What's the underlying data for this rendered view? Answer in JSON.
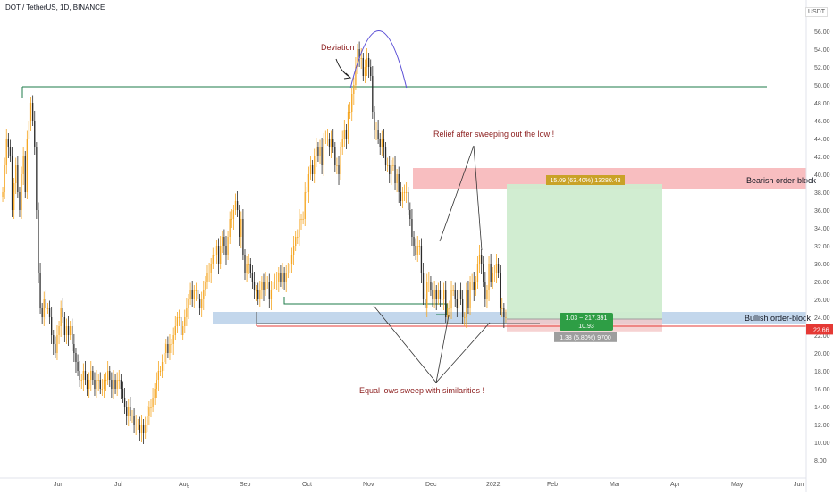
{
  "header": {
    "symbol_line": "DOT / TetherUS, 1D, BINANCE"
  },
  "axis": {
    "currency": "USDT"
  },
  "colors": {
    "up": "#f5a623",
    "down": "#2b2b2b",
    "bearish_zone": "#f7b7b9",
    "bullish_zone": "#bcd3ea",
    "profit_zone": "#cfeccf",
    "green_line": "#1e7b4a",
    "red_line": "#e53935",
    "annotation": "#8b1c1c",
    "curve": "#5b4fd6",
    "price_tag": "#e53935"
  },
  "annotations": {
    "deviation": "Deviation",
    "relief": "Relief after sweeping out the low !",
    "equal_lows": "Equal lows sweep with similarities !",
    "bearish_ob": "Bearish order-block",
    "bullish_ob": "Bullish order-block"
  },
  "position": {
    "target_label": "15.09 (63.40%) 13280.43",
    "ratio_label": "1.03 ~ 217.391",
    "ratio_sub": "10.93",
    "stop_label": "1.38 (5.80%) 9700"
  },
  "price_tag": "22.66",
  "chart_data": {
    "type": "candlestick",
    "title": "DOT / TetherUS, 1D, BINANCE",
    "xlabel": "",
    "ylabel": "USDT",
    "x_ticks": [
      "Jun",
      "Jul",
      "Aug",
      "Sep",
      "Oct",
      "Nov",
      "Dec",
      "2022",
      "Feb",
      "Mar",
      "Apr",
      "May",
      "Jun"
    ],
    "y_ticks": [
      "56.00",
      "54.00",
      "52.00",
      "50.00",
      "48.00",
      "46.00",
      "44.00",
      "42.00",
      "40.00",
      "38.00",
      "36.00",
      "34.00",
      "32.00",
      "30.00",
      "28.00",
      "26.00",
      "24.00",
      "22.00",
      "20.00",
      "18.00",
      "16.00",
      "14.00",
      "12.00",
      "10.00",
      "8.00"
    ],
    "ylim": [
      7,
      57.5
    ],
    "last_price": 22.66,
    "levels": [
      {
        "name": "green-resistance",
        "value": 49.8
      },
      {
        "name": "red-support",
        "value": 23.0
      }
    ],
    "zones": [
      {
        "name": "Bearish order-block",
        "low": 38.3,
        "high": 40.7
      },
      {
        "name": "Bullish order-block",
        "low": 23.2,
        "high": 24.6
      }
    ],
    "trade": {
      "entry": 23.8,
      "target": 38.9,
      "stop": 22.42
    },
    "closes": [
      38,
      41,
      44,
      43,
      42,
      36,
      39,
      41,
      38,
      36,
      40,
      42,
      38,
      44,
      46,
      48,
      46,
      43,
      36,
      29,
      25,
      24,
      26,
      25,
      25,
      24,
      22,
      21,
      20,
      22,
      23,
      25,
      24,
      22,
      23,
      22,
      23,
      21,
      20,
      19,
      18,
      17,
      17,
      18,
      17,
      16,
      17,
      18,
      17,
      16,
      17,
      17,
      16,
      16,
      17,
      17,
      18,
      17,
      16,
      17,
      16,
      17,
      17,
      16,
      15,
      14,
      13,
      14,
      13,
      13,
      12,
      12,
      12,
      11,
      12,
      11,
      12,
      13,
      14,
      14,
      15,
      16,
      17,
      18,
      18,
      19,
      20,
      21,
      20,
      21,
      21,
      22,
      23,
      24,
      24,
      22,
      23,
      24,
      25,
      26,
      27,
      26,
      27,
      27,
      26,
      25,
      26,
      27,
      28,
      29,
      29,
      30,
      31,
      31,
      32,
      30,
      32,
      33,
      32,
      31,
      33,
      35,
      35,
      36,
      37,
      36,
      33,
      35,
      31,
      29,
      30,
      30,
      29,
      28,
      27,
      27,
      26,
      27,
      28,
      27,
      28,
      28,
      26,
      27,
      28,
      28,
      28,
      29,
      28,
      29,
      28,
      29,
      29,
      30,
      31,
      32,
      33,
      33,
      35,
      35,
      35,
      38,
      38,
      40,
      41,
      40,
      42,
      43,
      42,
      43,
      41,
      44,
      44,
      44,
      43,
      44,
      43,
      41,
      41,
      40,
      43,
      44,
      45,
      44,
      47,
      47,
      49,
      50,
      52,
      54,
      53,
      53,
      51,
      52,
      53,
      52,
      51,
      47,
      45,
      45,
      44,
      43,
      44,
      43,
      41,
      41,
      40,
      41,
      41,
      39,
      40,
      38,
      37,
      38,
      38,
      38,
      36,
      35,
      33,
      32,
      31,
      32,
      32,
      29,
      26,
      25,
      28,
      28,
      27,
      26,
      27,
      26,
      27,
      26,
      26,
      27,
      24,
      25,
      25,
      27,
      27,
      26,
      25,
      27,
      26,
      24,
      24,
      27,
      25,
      28,
      28,
      27,
      28,
      30,
      31,
      30,
      28,
      26,
      27,
      30,
      28,
      29,
      29,
      30,
      29,
      25,
      25,
      24,
      24
    ]
  }
}
